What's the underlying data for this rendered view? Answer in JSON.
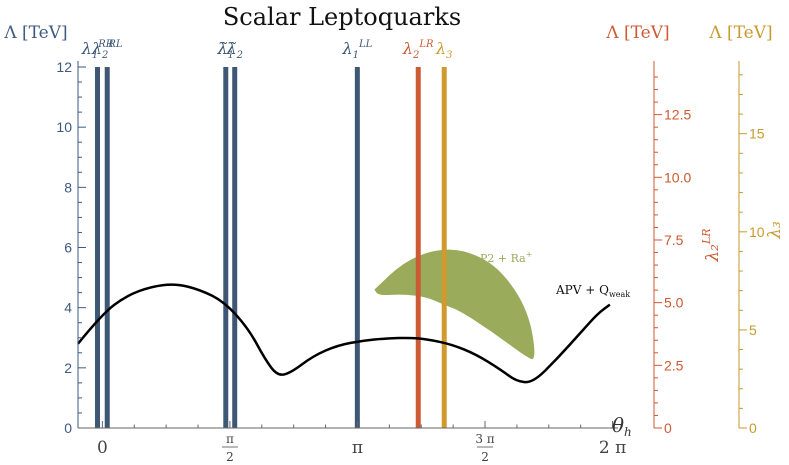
{
  "chart_data": {
    "type": "line",
    "title": "Scalar Leptoquarks",
    "x_label": "θ",
    "x_label_sub": "h",
    "x_range": [
      -0.3,
      6.35
    ],
    "x_ticks": [
      {
        "value": 0,
        "label": "0"
      },
      {
        "value": 1.5708,
        "label_num": "π",
        "label_den": "2"
      },
      {
        "value": 3.1416,
        "label": "π"
      },
      {
        "value": 4.7124,
        "label_num": "3 π",
        "label_den": "2"
      },
      {
        "value": 6.2832,
        "label": "2 π"
      }
    ],
    "axes": [
      {
        "key": "left",
        "label": "Λ [TeV]",
        "color": "#3d5a80",
        "range": [
          0,
          12
        ],
        "ticks": [
          0,
          2,
          4,
          6,
          8,
          10,
          12
        ]
      },
      {
        "key": "mid",
        "label": "Λ [TeV]",
        "color": "#cc5a33",
        "range": [
          0,
          14.4
        ],
        "ticks": [
          0,
          2.5,
          5.0,
          7.5,
          10.0,
          12.5
        ],
        "tick_labels": [
          "0",
          "2.5",
          "5.0",
          "7.5",
          "10.0",
          "12.5"
        ],
        "side_label": "λ₂",
        "side_label_sup": "LR"
      },
      {
        "key": "right",
        "label": "Λ [TeV]",
        "color": "#c79a2e",
        "range": [
          0,
          18.4
        ],
        "ticks": [
          0,
          5,
          10,
          15
        ],
        "tick_labels": [
          "0",
          "5",
          "10",
          "15"
        ],
        "side_label": "λ₃"
      }
    ],
    "vertical_bands": [
      {
        "x": -0.06,
        "label": "λ",
        "sub": "1",
        "sup": "RR",
        "color": "#3d5775"
      },
      {
        "x": 0.06,
        "label": "λ",
        "sub": "2",
        "sup": "RL",
        "color": "#3d5775"
      },
      {
        "x": 1.52,
        "label": "λ̃",
        "sub": "1",
        "sup": "",
        "color": "#3d5775"
      },
      {
        "x": 1.63,
        "label": "λ̃",
        "sub": "2",
        "sup": "",
        "color": "#3d5775"
      },
      {
        "x": 3.14,
        "label": "λ",
        "sub": "1",
        "sup": "LL",
        "color": "#3d5775"
      },
      {
        "x": 3.89,
        "label": "λ",
        "sub": "2",
        "sup": "LR",
        "color": "#cc5a33"
      },
      {
        "x": 4.21,
        "label": "λ",
        "sub": "3",
        "sup": "",
        "color": "#d19a2e"
      }
    ],
    "series": [
      {
        "name": "APV + Q",
        "name_sub": "weak",
        "color": "#000000",
        "x": [
          -0.3,
          0.0,
          0.3,
          0.6,
          0.9,
          1.2,
          1.5,
          1.8,
          2.0,
          2.15,
          2.3,
          2.6,
          2.9,
          3.2,
          3.5,
          3.8,
          4.0,
          4.3,
          4.6,
          4.9,
          5.1,
          5.3,
          5.6,
          5.9,
          6.1,
          6.25
        ],
        "y": [
          2.8,
          3.8,
          4.4,
          4.7,
          4.8,
          4.6,
          4.2,
          3.3,
          2.3,
          1.75,
          1.8,
          2.4,
          2.75,
          2.9,
          2.98,
          3.0,
          2.95,
          2.78,
          2.45,
          1.95,
          1.55,
          1.5,
          2.3,
          3.2,
          3.8,
          4.1
        ]
      }
    ],
    "regions": [
      {
        "name": "P2 + Ra",
        "name_sup": "+",
        "color": "#9aab5c",
        "x": [
          3.35,
          3.7,
          4.1,
          4.5,
          4.9,
          5.25,
          5.35,
          5.2,
          4.8,
          4.4,
          4.2,
          4.0,
          3.7,
          3.4,
          3.35
        ],
        "y": [
          4.6,
          5.5,
          5.95,
          5.9,
          5.3,
          3.9,
          2.2,
          2.4,
          3.2,
          3.9,
          4.1,
          4.35,
          4.45,
          4.4,
          4.6
        ]
      }
    ]
  }
}
